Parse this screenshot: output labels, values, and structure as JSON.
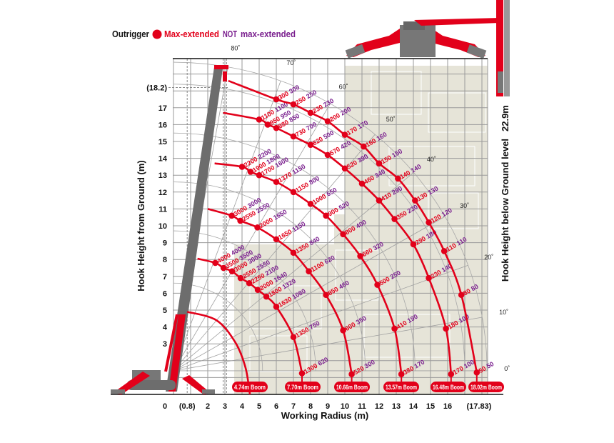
{
  "legend": {
    "outrigger": "Outrigger",
    "max_extended": "Max-extended",
    "not": "NOT",
    "not_max_extended": "max-extended",
    "colors": {
      "max_extended": "#e2001a",
      "not_max_extended": "#7a1f8e"
    }
  },
  "chart_data": {
    "type": "scatter",
    "title": "",
    "xlabel": "Working Radius (m)",
    "ylabel": "Hook Height from Ground (m)",
    "right_label": "Hook Height below Ground level",
    "right_value": "22.9m",
    "xlim": [
      0,
      18.3
    ],
    "ylim": [
      0,
      19.9
    ],
    "grid": true,
    "x_ticks": [
      {
        "label": "0",
        "value": 0
      },
      {
        "label": "(0.8)",
        "value": 0.8
      },
      {
        "label": "2",
        "value": 2
      },
      {
        "label": "3",
        "value": 3
      },
      {
        "label": "4",
        "value": 4
      },
      {
        "label": "5",
        "value": 5
      },
      {
        "label": "6",
        "value": 6
      },
      {
        "label": "7",
        "value": 7
      },
      {
        "label": "8",
        "value": 8
      },
      {
        "label": "9",
        "value": 9
      },
      {
        "label": "10",
        "value": 10
      },
      {
        "label": "11",
        "value": 11
      },
      {
        "label": "12",
        "value": 12
      },
      {
        "label": "13",
        "value": 13
      },
      {
        "label": "14",
        "value": 14
      },
      {
        "label": "15",
        "value": 15
      },
      {
        "label": "16",
        "value": 16
      },
      {
        "label": "(17.83)",
        "value": 17.83
      }
    ],
    "y_ticks": [
      {
        "label": "3",
        "value": 3
      },
      {
        "label": "4",
        "value": 4
      },
      {
        "label": "5",
        "value": 5
      },
      {
        "label": "6",
        "value": 6
      },
      {
        "label": "7",
        "value": 7
      },
      {
        "label": "8",
        "value": 8
      },
      {
        "label": "9",
        "value": 9
      },
      {
        "label": "10",
        "value": 10
      },
      {
        "label": "11",
        "value": 11
      },
      {
        "label": "12",
        "value": 12
      },
      {
        "label": "13",
        "value": 13
      },
      {
        "label": "14",
        "value": 14
      },
      {
        "label": "15",
        "value": 15
      },
      {
        "label": "16",
        "value": 16
      },
      {
        "label": "17",
        "value": 17
      },
      {
        "label": "(18.2)",
        "value": 18.2
      }
    ],
    "angle_lines": [
      {
        "label": "80˚",
        "deg": 80
      },
      {
        "label": "70˚",
        "deg": 70
      },
      {
        "label": "60˚",
        "deg": 60
      },
      {
        "label": "50˚",
        "deg": 50
      },
      {
        "label": "40˚",
        "deg": 40
      },
      {
        "label": "30˚",
        "deg": 30
      },
      {
        "label": "20˚",
        "deg": 20
      },
      {
        "label": "10˚",
        "deg": 10
      },
      {
        "label": "0˚",
        "deg": 0
      }
    ],
    "booms": [
      {
        "label": "4.74m Boom",
        "curve": [
          [
            0.8,
            4.9
          ],
          [
            2.5,
            4.4
          ],
          [
            3.6,
            3.1
          ],
          [
            4.2,
            1.6
          ],
          [
            4.46,
            0
          ]
        ],
        "points": []
      },
      {
        "label": "7.70m Boom",
        "curve": [
          [
            1.4,
            8.05
          ]
        ],
        "points": [
          {
            "r": 2.44,
            "h": 7.8,
            "max": "4000",
            "not_max": "4000"
          },
          {
            "r": 2.92,
            "h": 7.5,
            "max": "3500",
            "not_max": "3500"
          },
          {
            "r": 3.42,
            "h": 7.3,
            "max": "3000",
            "not_max": "3000"
          },
          {
            "r": 3.92,
            "h": 6.9,
            "max": "2550",
            "not_max": "2550"
          },
          {
            "r": 4.42,
            "h": 6.6,
            "max": "2250",
            "not_max": "2100"
          },
          {
            "r": 4.92,
            "h": 6.2,
            "max": "2000",
            "not_max": "1640"
          },
          {
            "r": 5.42,
            "h": 5.8,
            "max": "1800",
            "not_max": "1320"
          },
          {
            "r": 6.0,
            "h": 5.2,
            "max": "1630",
            "not_max": "1080"
          },
          {
            "r": 7.0,
            "h": 3.4,
            "max": "1350",
            "not_max": "750"
          },
          {
            "r": 7.5,
            "h": 1.25,
            "max": "1300",
            "not_max": "620"
          }
        ]
      },
      {
        "label": "10.66m Boom",
        "curve": [
          [
            2.0,
            11.0
          ]
        ],
        "points": [
          {
            "r": 3.4,
            "h": 10.6,
            "max": "3000",
            "not_max": "3000"
          },
          {
            "r": 3.9,
            "h": 10.3,
            "max": "2550",
            "not_max": "2550"
          },
          {
            "r": 4.9,
            "h": 9.9,
            "max": "2000",
            "not_max": "1650"
          },
          {
            "r": 6.0,
            "h": 9.2,
            "max": "1650",
            "not_max": "1150"
          },
          {
            "r": 7.0,
            "h": 8.4,
            "max": "1350",
            "not_max": "840"
          },
          {
            "r": 7.9,
            "h": 7.3,
            "max": "1100",
            "not_max": "620"
          },
          {
            "r": 8.9,
            "h": 5.9,
            "max": "850",
            "not_max": "460"
          },
          {
            "r": 9.9,
            "h": 3.8,
            "max": "600",
            "not_max": "350"
          },
          {
            "r": 10.4,
            "h": 1.2,
            "max": "520",
            "not_max": "300"
          }
        ]
      },
      {
        "label": "13.57m Boom",
        "curve": [
          [
            2.4,
            13.7
          ]
        ],
        "points": [
          {
            "r": 4.0,
            "h": 13.5,
            "max": "2200",
            "not_max": "2200"
          },
          {
            "r": 4.5,
            "h": 13.2,
            "max": "1900",
            "not_max": "1800"
          },
          {
            "r": 5.0,
            "h": 13.0,
            "max": "1700",
            "not_max": "1600"
          },
          {
            "r": 6.0,
            "h": 12.6,
            "max": "1370",
            "not_max": "1150"
          },
          {
            "r": 7.0,
            "h": 12.0,
            "max": "1150",
            "not_max": "800"
          },
          {
            "r": 8.0,
            "h": 11.3,
            "max": "1000",
            "not_max": "650"
          },
          {
            "r": 8.9,
            "h": 10.6,
            "max": "900",
            "not_max": "520"
          },
          {
            "r": 9.9,
            "h": 9.5,
            "max": "800",
            "not_max": "400"
          },
          {
            "r": 10.9,
            "h": 8.2,
            "max": "660",
            "not_max": "320"
          },
          {
            "r": 11.9,
            "h": 6.5,
            "max": "500",
            "not_max": "250"
          },
          {
            "r": 12.9,
            "h": 3.9,
            "max": "410",
            "not_max": "190"
          },
          {
            "r": 13.3,
            "h": 1.2,
            "max": "380",
            "not_max": "170"
          }
        ]
      },
      {
        "label": "16.48m Boom",
        "curve": [
          [
            2.9,
            16.7
          ]
        ],
        "points": [
          {
            "r": 5.0,
            "h": 16.3,
            "max": "1100",
            "not_max": "1100"
          },
          {
            "r": 5.5,
            "h": 16.0,
            "max": "950",
            "not_max": "950"
          },
          {
            "r": 6.0,
            "h": 15.8,
            "max": "880",
            "not_max": "850"
          },
          {
            "r": 7.0,
            "h": 15.3,
            "max": "730",
            "not_max": "700"
          },
          {
            "r": 8.0,
            "h": 14.8,
            "max": "620",
            "not_max": "500"
          },
          {
            "r": 9.0,
            "h": 14.2,
            "max": "570",
            "not_max": "420"
          },
          {
            "r": 10.0,
            "h": 13.4,
            "max": "520",
            "not_max": "390"
          },
          {
            "r": 11.0,
            "h": 12.5,
            "max": "460",
            "not_max": "340"
          },
          {
            "r": 12.0,
            "h": 11.5,
            "max": "410",
            "not_max": "290"
          },
          {
            "r": 12.9,
            "h": 10.4,
            "max": "350",
            "not_max": "230"
          },
          {
            "r": 14.0,
            "h": 8.9,
            "max": "290",
            "not_max": "180"
          },
          {
            "r": 14.9,
            "h": 6.9,
            "max": "230",
            "not_max": "140"
          },
          {
            "r": 15.9,
            "h": 3.9,
            "max": "180",
            "not_max": "100"
          },
          {
            "r": 16.2,
            "h": 1.2,
            "max": "170",
            "not_max": "100"
          }
        ]
      },
      {
        "label": "18.02m Boom",
        "curve": [
          [
            3.2,
            18.6
          ]
        ],
        "points": [
          {
            "r": 6.0,
            "h": 17.5,
            "max": "300",
            "not_max": "300"
          },
          {
            "r": 7.0,
            "h": 17.2,
            "max": "250",
            "not_max": "250"
          },
          {
            "r": 8.0,
            "h": 16.7,
            "max": "230",
            "not_max": "230"
          },
          {
            "r": 9.0,
            "h": 16.2,
            "max": "200",
            "not_max": "200"
          },
          {
            "r": 10.0,
            "h": 15.4,
            "max": "170",
            "not_max": "170"
          },
          {
            "r": 11.1,
            "h": 14.7,
            "max": "160",
            "not_max": "160"
          },
          {
            "r": 12.0,
            "h": 13.7,
            "max": "150",
            "not_max": "150"
          },
          {
            "r": 13.1,
            "h": 12.8,
            "max": "140",
            "not_max": "140"
          },
          {
            "r": 14.1,
            "h": 11.5,
            "max": "130",
            "not_max": "130"
          },
          {
            "r": 14.9,
            "h": 10.2,
            "max": "120",
            "not_max": "120"
          },
          {
            "r": 15.8,
            "h": 8.5,
            "max": "110",
            "not_max": "110"
          },
          {
            "r": 16.8,
            "h": 5.9,
            "max": "80",
            "not_max": "80"
          },
          {
            "r": 17.7,
            "h": 1.3,
            "max": "50",
            "not_max": "50"
          }
        ]
      }
    ]
  }
}
